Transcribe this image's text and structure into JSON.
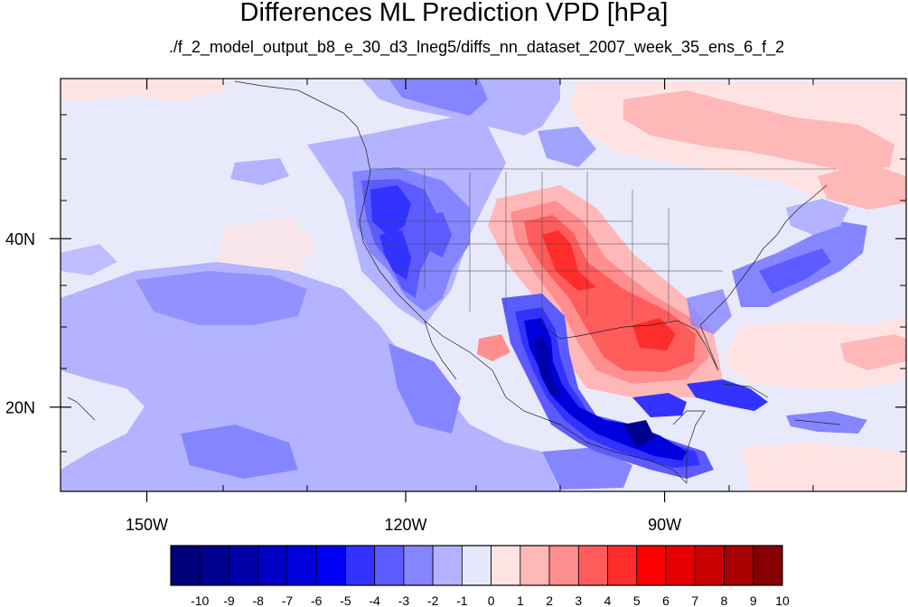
{
  "title": "Differences ML Prediction VPD [hPa]",
  "subtitle": "./f_2_model_output_b8_e_30_d3_lneg5/diffs_nn_dataset_2007_week_35_ens_6_f_2",
  "map": {
    "lon_range": [
      -160,
      -62
    ],
    "lat_range": [
      10,
      59
    ],
    "x_ticks": [
      {
        "lon": -150,
        "label": "150W"
      },
      {
        "lon": -120,
        "label": "120W"
      },
      {
        "lon": -90,
        "label": "90W"
      }
    ],
    "y_ticks": [
      {
        "lat": 40,
        "label": "40N"
      },
      {
        "lat": 20,
        "label": "20N"
      }
    ],
    "background_color": "#e8eafc"
  },
  "colorbar": {
    "labels": [
      "-10",
      "-9",
      "-8",
      "-7",
      "-6",
      "-5",
      "-4",
      "-3",
      "-2",
      "-1",
      "0",
      "1",
      "2",
      "3",
      "4",
      "5",
      "6",
      "7",
      "8",
      "9",
      "10"
    ],
    "colors": [
      "#00007a",
      "#000090",
      "#0000aa",
      "#0000c4",
      "#0000dd",
      "#0000f5",
      "#3333ff",
      "#5b5bff",
      "#8585ff",
      "#b3b3ff",
      "#e6e8fb",
      "#ffe3e3",
      "#ffb8b8",
      "#ff8e8e",
      "#ff5c5c",
      "#ff2c2c",
      "#ff0000",
      "#e60000",
      "#c80000",
      "#a80000",
      "#850000"
    ]
  }
}
